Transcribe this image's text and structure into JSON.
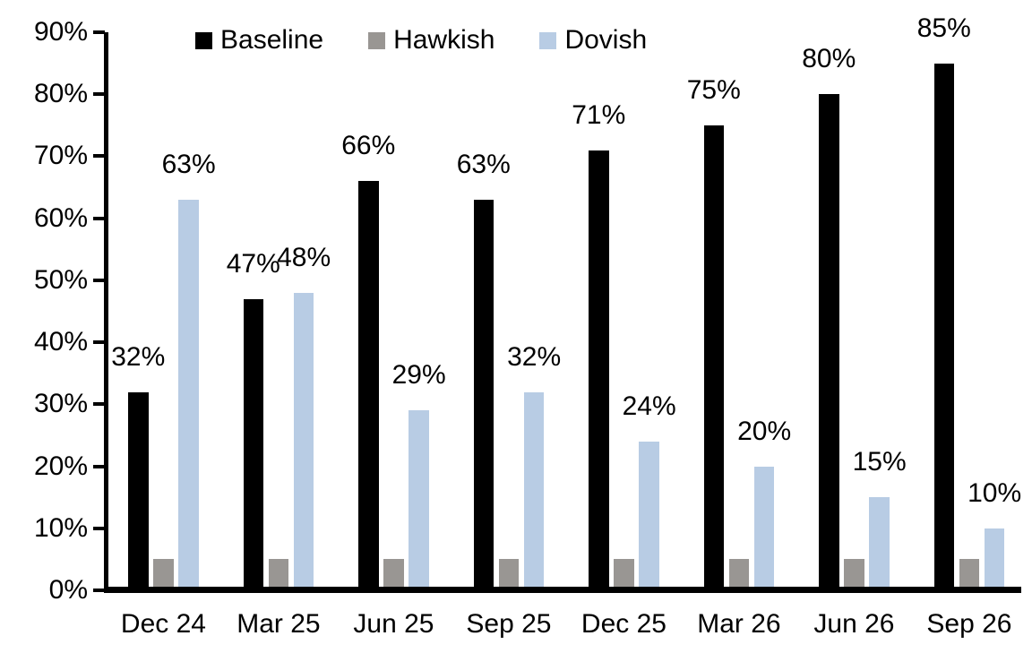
{
  "chart_data": {
    "type": "bar",
    "title": "",
    "categories": [
      "Dec 24",
      "Mar 25",
      "Jun 25",
      "Sep 25",
      "Dec 25",
      "Mar 26",
      "Jun 26",
      "Sep 26"
    ],
    "series": [
      {
        "name": "Baseline",
        "color": "#000000",
        "values": [
          32,
          47,
          66,
          63,
          71,
          75,
          80,
          85
        ],
        "data_labels": [
          "32%",
          "47%",
          "66%",
          "63%",
          "71%",
          "75%",
          "80%",
          "85%"
        ],
        "labels_visible": true
      },
      {
        "name": "Hawkish",
        "color": "#999693",
        "values": [
          5,
          5,
          5,
          5,
          5,
          5,
          5,
          5
        ],
        "data_labels": [
          "",
          "",
          "",
          "",
          "",
          "",
          "",
          ""
        ],
        "labels_visible": false
      },
      {
        "name": "Dovish",
        "color": "#B8CCE4",
        "values": [
          63,
          48,
          29,
          32,
          24,
          20,
          15,
          10
        ],
        "data_labels": [
          "63%",
          "48%",
          "29%",
          "32%",
          "24%",
          "20%",
          "15%",
          "10%"
        ],
        "labels_visible": true
      }
    ],
    "ylabel": "",
    "xlabel": "",
    "ylim": [
      0,
      90
    ],
    "ytick_step": 10,
    "ytick_labels": [
      "0%",
      "10%",
      "20%",
      "30%",
      "40%",
      "50%",
      "60%",
      "70%",
      "80%",
      "90%"
    ],
    "label_format": "percent",
    "legend_position": "top",
    "grid": false,
    "background_color": "#ffffff",
    "text_color": "#000000"
  }
}
